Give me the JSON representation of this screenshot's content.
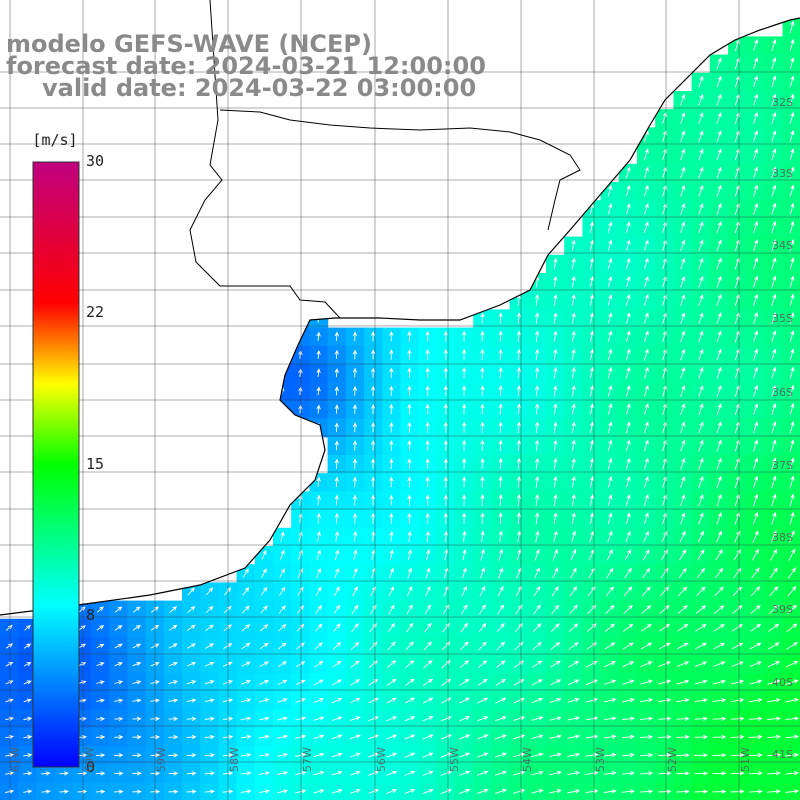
{
  "title": {
    "model": "modelo GEFS-WAVE (NCEP)",
    "forecast": "forecast date: 2024-03-21 12:00:00",
    "valid": "valid date: 2024-03-22 03:00:00"
  },
  "colorbar": {
    "unit": "[m/s]",
    "min": 0,
    "max": 30,
    "ticks": [
      "30",
      "22",
      "15",
      "8",
      "0"
    ],
    "colors": [
      "#0000ff",
      "#00ffff",
      "#00ff00",
      "#ffff00",
      "#ff0000",
      "#c00080"
    ]
  },
  "grid": {
    "latitudes": [
      "32S",
      "33S",
      "34S",
      "35S",
      "36S",
      "37S",
      "38S",
      "39S",
      "40S",
      "41S"
    ],
    "longitudes": [
      "61W",
      "60W",
      "59W",
      "58W",
      "57W",
      "56W",
      "55W",
      "54W",
      "53W",
      "52W",
      "51W"
    ]
  },
  "field": {
    "arrow_color": "#ffffff",
    "land_color": "#ffffff",
    "coast_color": "#000000"
  }
}
